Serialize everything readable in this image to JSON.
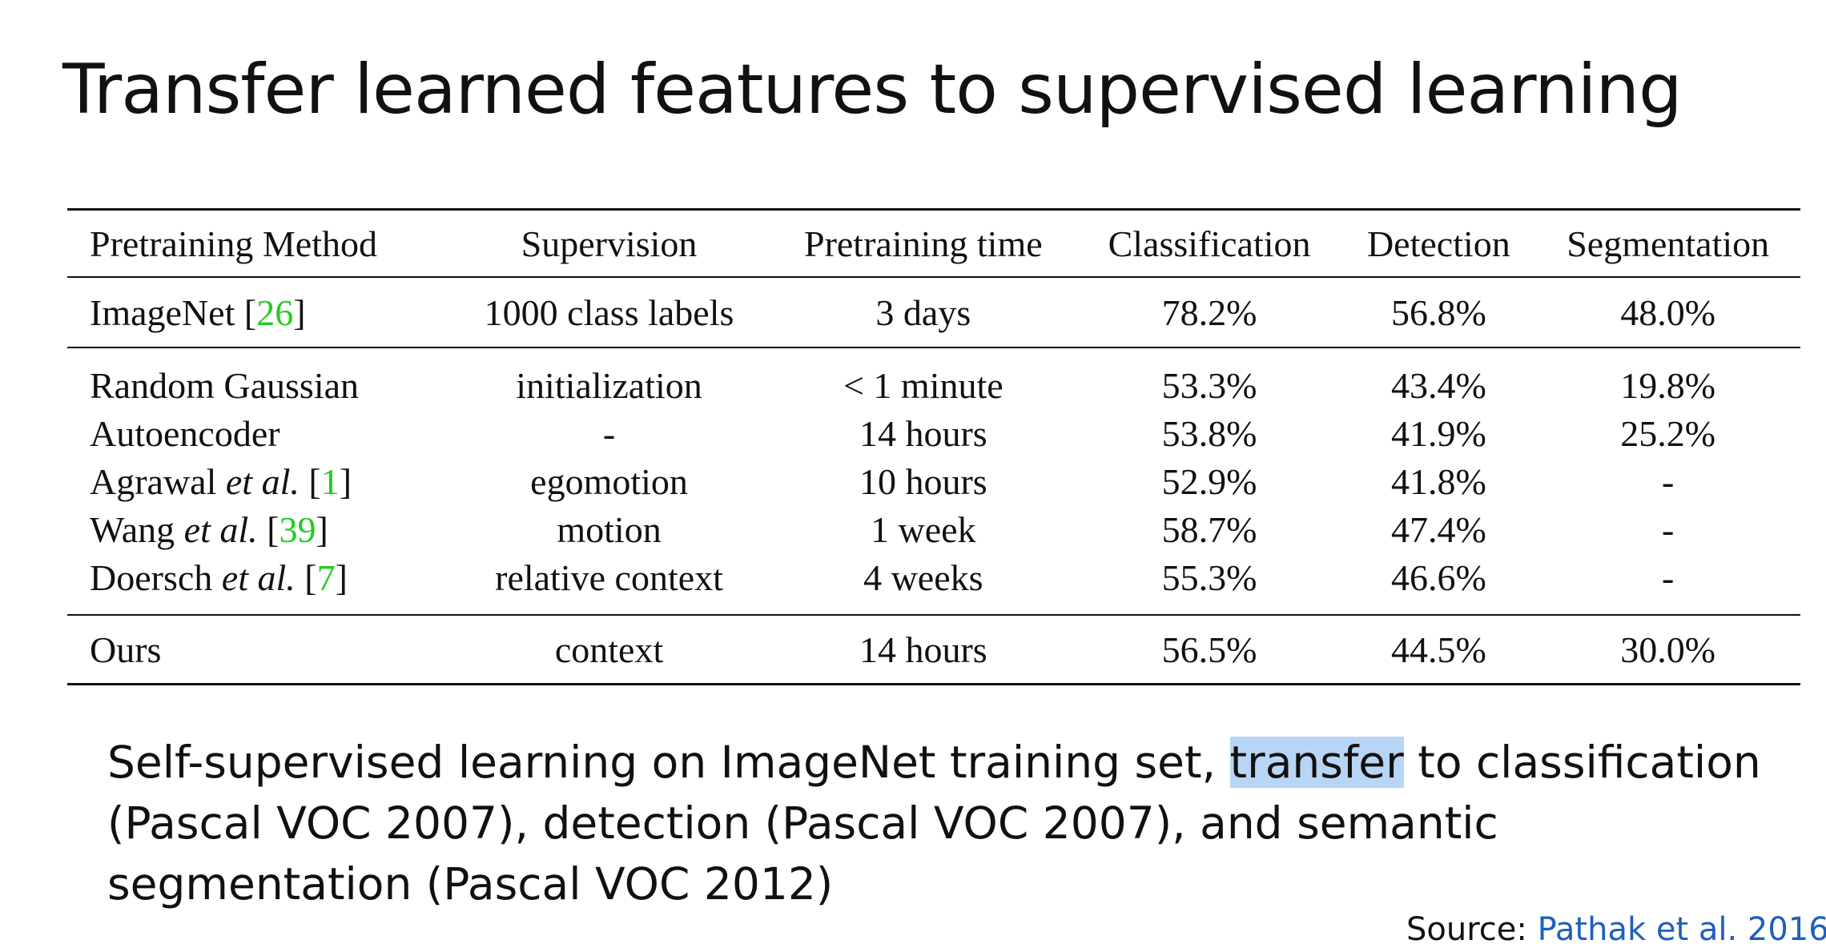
{
  "slide": {
    "title": "Transfer learned features to supervised learning"
  },
  "table": {
    "headers": [
      "Pretraining Method",
      "Supervision",
      "Pretraining time",
      "Classification",
      "Detection",
      "Segmentation"
    ],
    "baseline": {
      "method": "ImageNet",
      "ref": "26",
      "supervision": "1000 class labels",
      "time": "3 days",
      "classification": "78.2%",
      "detection": "56.8%",
      "segmentation": "48.0%"
    },
    "rows": [
      {
        "method": "Random Gaussian",
        "supervision": "initialization",
        "time": "< 1 minute",
        "classification": "53.3%",
        "detection": "43.4%",
        "segmentation": "19.8%"
      },
      {
        "method": "Autoencoder",
        "supervision": "-",
        "time": "14 hours",
        "classification": "53.8%",
        "detection": "41.9%",
        "segmentation": "25.2%"
      },
      {
        "method": "Agrawal",
        "etal": "et al.",
        "ref": "1",
        "supervision": "egomotion",
        "time": "10 hours",
        "classification": "52.9%",
        "detection": "41.8%",
        "segmentation": "-"
      },
      {
        "method": "Wang",
        "etal": "et al.",
        "ref": "39",
        "supervision": "motion",
        "time": "1 week",
        "classification": "58.7%",
        "detection": "47.4%",
        "segmentation": "-"
      },
      {
        "method": "Doersch",
        "etal": "et al.",
        "ref": "7",
        "supervision": "relative context",
        "time": "4 weeks",
        "classification": "55.3%",
        "detection": "46.6%",
        "segmentation": "-"
      }
    ],
    "ours": {
      "method": "Ours",
      "supervision": "context",
      "time": "14 hours",
      "classification": "56.5%",
      "detection": "44.5%",
      "segmentation": "30.0%"
    }
  },
  "caption": {
    "before_highlight": "Self-supervised learning on ImageNet training set, ",
    "highlight": "transfer",
    "after_highlight": " to classification (Pascal VOC 2007), detection (Pascal VOC 2007), and semantic segmentation (Pascal VOC 2012)"
  },
  "source": {
    "prefix": "Source: ",
    "citation": "Pathak et al. 2016"
  },
  "colors": {
    "reference_green": "#22cc22",
    "highlight": "#b8d5f5",
    "link": "#1f5fbf"
  }
}
